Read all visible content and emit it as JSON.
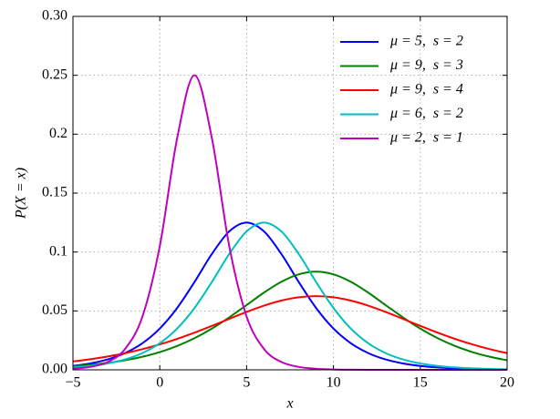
{
  "chart_data": {
    "type": "line",
    "xlabel": "x",
    "ylabel": "P(X = x)",
    "x": [
      -5,
      -4,
      -3,
      -2,
      -1,
      0,
      1,
      2,
      3,
      4,
      5,
      6,
      7,
      8,
      9,
      10,
      11,
      12,
      13,
      14,
      15,
      16,
      17,
      18,
      19,
      20
    ],
    "series": [
      {
        "name": "μ = 5,  s = 2",
        "color": "#0000ff",
        "values": [
          0.00332,
          0.00543,
          0.00883,
          0.01423,
          0.02259,
          0.03505,
          0.0525,
          0.07458,
          0.09831,
          0.1175,
          0.125,
          0.1175,
          0.09831,
          0.07458,
          0.0525,
          0.03505,
          0.02259,
          0.01423,
          0.00883,
          0.00543,
          0.00332,
          0.00203,
          0.00123,
          0.00075,
          0.000455,
          0.000276
        ]
      },
      {
        "name": "μ = 9,  s = 3",
        "color": "#008000",
        "values": [
          0.00308,
          0.00426,
          0.00589,
          0.0081,
          0.01109,
          0.01506,
          0.02025,
          0.02686,
          0.035,
          0.04454,
          0.05498,
          0.06554,
          0.07472,
          0.08106,
          0.08333,
          0.08106,
          0.07472,
          0.06554,
          0.05498,
          0.04454,
          0.035,
          0.02686,
          0.02025,
          0.01506,
          0.01109,
          0.0081
        ]
      },
      {
        "name": "μ = 9,  s = 4",
        "color": "#ff0000",
        "values": [
          0.00711,
          0.00898,
          0.0113,
          0.01412,
          0.01753,
          0.02157,
          0.02625,
          0.03153,
          0.03729,
          0.04328,
          0.04915,
          0.05448,
          0.05875,
          0.06154,
          0.0625,
          0.06154,
          0.05875,
          0.05448,
          0.04915,
          0.04328,
          0.03729,
          0.03153,
          0.02625,
          0.02157,
          0.01753,
          0.01412
        ]
      },
      {
        "name": "μ = 6,  s = 2",
        "color": "#00bfbf",
        "values": [
          0.00203,
          0.00332,
          0.00543,
          0.00883,
          0.01423,
          0.02259,
          0.03505,
          0.0525,
          0.07458,
          0.09831,
          0.1175,
          0.125,
          0.1175,
          0.09831,
          0.07458,
          0.0525,
          0.03505,
          0.02259,
          0.01423,
          0.00883,
          0.00543,
          0.00332,
          0.00203,
          0.00123,
          0.00075,
          0.000455
        ]
      },
      {
        "name": "μ = 2,  s = 1",
        "color": "#bf00bf",
        "values": [
          0.00091,
          0.002467,
          0.006648,
          0.01766,
          0.04518,
          0.10499,
          0.19661,
          0.25,
          0.19661,
          0.10499,
          0.04518,
          0.01766,
          0.006648,
          0.002467,
          0.00091,
          0.000335,
          0.000123,
          4.54e-05,
          1.67e-05,
          6.1e-06,
          2.3e-06,
          8e-07,
          3e-07,
          1e-07,
          0,
          0
        ]
      }
    ],
    "xlim": [
      -5,
      20
    ],
    "xticks": [
      {
        "value": -5,
        "label": "−5"
      },
      0,
      5,
      10,
      15,
      20
    ],
    "ylim": [
      0,
      0.3
    ],
    "yticks": [
      {
        "value": 0,
        "label": "0.00"
      },
      0.05,
      0.1,
      0.15,
      0.2,
      0.25,
      {
        "value": 0.3,
        "label": "0.30"
      }
    ],
    "grid": true,
    "legend": "upper right"
  }
}
